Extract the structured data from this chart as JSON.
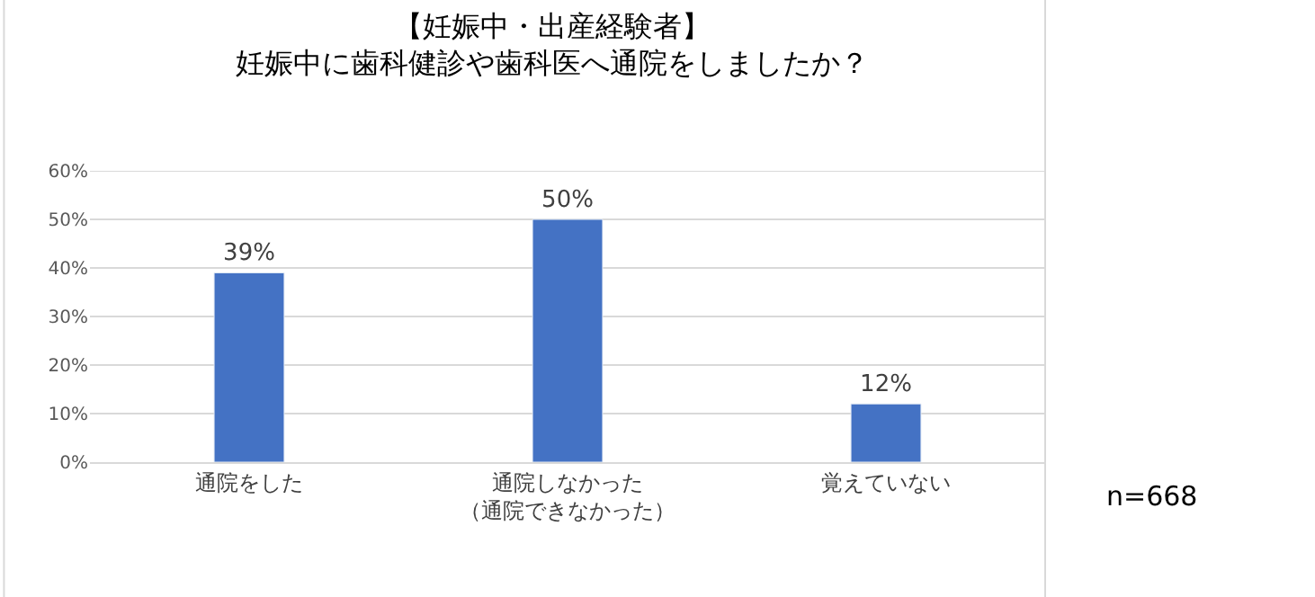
{
  "chart_data": {
    "type": "bar",
    "title": "【妊娠中・出産経験者】",
    "subtitle": "妊娠中に歯科健診や歯科医へ通院をしましたか？",
    "categories": [
      "通院をした",
      "通院しなかった（通院できなかった）",
      "覚えていない"
    ],
    "values": [
      39,
      50,
      12
    ],
    "value_labels": [
      "39%",
      "50%",
      "12%"
    ],
    "color": "#4472c4",
    "ylim": [
      0,
      60
    ],
    "yticks": [
      {
        "value": 0,
        "label": "0%"
      },
      {
        "value": 10,
        "label": "10%"
      },
      {
        "value": 20,
        "label": "20%"
      },
      {
        "value": 30,
        "label": "30%"
      },
      {
        "value": 40,
        "label": "40%"
      },
      {
        "value": 50,
        "label": "50%"
      },
      {
        "value": 60,
        "label": "60%"
      }
    ],
    "grid": "y",
    "legend": false,
    "annotations": [
      "n=668"
    ]
  }
}
